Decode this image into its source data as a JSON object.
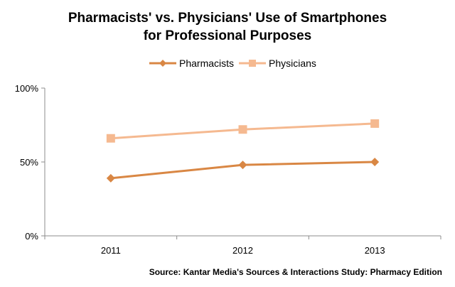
{
  "chart_data": {
    "type": "line",
    "title_lines": [
      "Pharmacists' vs. Physicians' Use of Smartphones",
      "for Professional Purposes"
    ],
    "categories": [
      "2011",
      "2012",
      "2013"
    ],
    "series": [
      {
        "name": "Pharmacists",
        "values": [
          39,
          48,
          50
        ],
        "color": "#D98744",
        "marker": "diamond"
      },
      {
        "name": "Physicians",
        "values": [
          66,
          72,
          76
        ],
        "color": "#F5B990",
        "marker": "square"
      }
    ],
    "y_ticks": [
      "0%",
      "50%",
      "100%"
    ],
    "ylim": [
      0,
      100
    ],
    "grid": false,
    "legend_position": "top",
    "source": "Source: Kantar Media's Sources & Interactions Study: Pharmacy Edition"
  }
}
